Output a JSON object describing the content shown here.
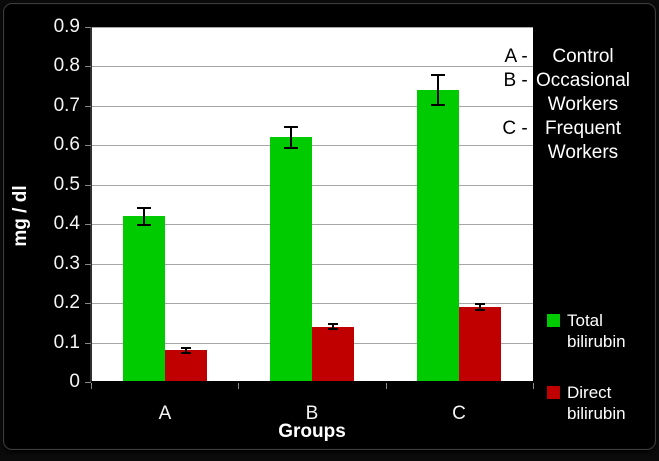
{
  "chart_data": {
    "type": "bar",
    "categories": [
      "A",
      "B",
      "C"
    ],
    "series": [
      {
        "name": "Total bilirubin",
        "color": "#00CA00",
        "values": [
          0.42,
          0.62,
          0.74
        ],
        "errors": [
          0.025,
          0.03,
          0.04
        ]
      },
      {
        "name": "Direct bilirubin",
        "color": "#C00000",
        "values": [
          0.08,
          0.14,
          0.19
        ],
        "errors": [
          0.01,
          0.009,
          0.01
        ]
      }
    ],
    "xlabel": "Groups",
    "ylabel": "mg / dl",
    "ylim": [
      0,
      0.9
    ],
    "ytick_step": 0.1,
    "ytick_labels": [
      "0.9",
      "0.8",
      "0.7",
      "0.6",
      "0.5",
      "0.4",
      "0.3",
      "0.2",
      "0.1",
      "0"
    ],
    "grid": true,
    "legend_position": "right",
    "legend": [
      {
        "label": "Total bilirubin",
        "color": "#00CA00"
      },
      {
        "label": "Direct bilirubin",
        "color": "#C00000"
      }
    ],
    "annotations": [
      {
        "prefix": "A - ",
        "label": "Control"
      },
      {
        "prefix": "B - ",
        "label": "Occasional"
      },
      {
        "prefix": "",
        "label": "Workers"
      },
      {
        "prefix": "C - ",
        "label": "Frequent"
      },
      {
        "prefix": "",
        "label": "Workers"
      }
    ]
  },
  "colors": {
    "background": "#000000",
    "plot_background": "#FFFFFF",
    "gridline": "#A6A6A6",
    "axis_text": "#FFFFFF",
    "annotation_prefix": "#000000",
    "error_bar": "#000000"
  }
}
